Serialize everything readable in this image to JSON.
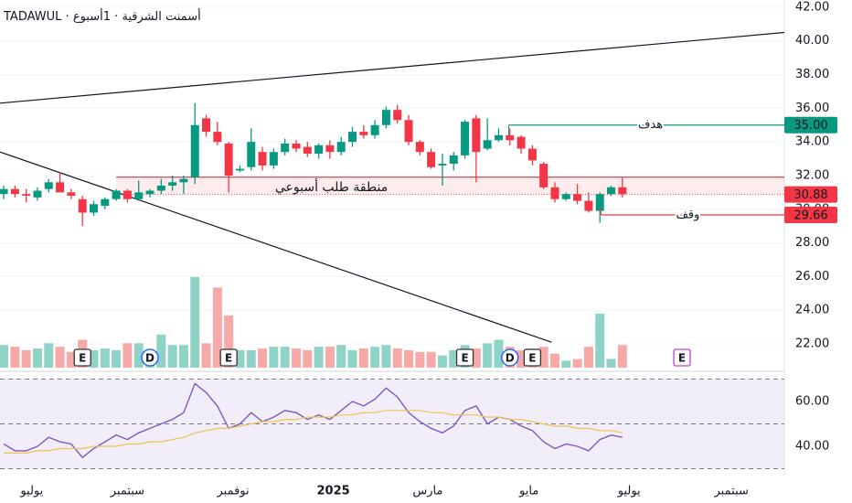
{
  "header": {
    "exchange": "TADAWUL",
    "symbol": "أسمنت الشرقية",
    "interval": "1أسبوع"
  },
  "chart_data": [
    {
      "type": "candlestick",
      "open": [
        30.9,
        31.2,
        30.9,
        30.7,
        31.2,
        31.6,
        31.0,
        30.6,
        29.8,
        30.2,
        30.6,
        31.1,
        30.6,
        30.9,
        31.1,
        31.4,
        31.6,
        31.9,
        35.4,
        34.6,
        33.9,
        32.3,
        32.5,
        33.4,
        32.6,
        33.4,
        33.9,
        33.7,
        33.3,
        33.8,
        33.4,
        34.0,
        34.6,
        34.4,
        35.0,
        35.9,
        35.3,
        34.0,
        33.4,
        32.6,
        32.7,
        33.2,
        35.4,
        33.6,
        34.1,
        34.4,
        34.3,
        33.6,
        32.7,
        31.3,
        30.6,
        30.9,
        30.5,
        29.9,
        30.9,
        31.3
      ],
      "high": [
        31.4,
        31.4,
        31.2,
        31.3,
        31.8,
        32.2,
        31.2,
        30.8,
        30.5,
        30.7,
        31.2,
        31.2,
        31.7,
        31.2,
        31.8,
        32.0,
        32.0,
        36.3,
        35.6,
        35.2,
        34.0,
        32.6,
        34.8,
        33.7,
        33.6,
        34.2,
        34.1,
        34.0,
        33.9,
        34.1,
        34.3,
        34.9,
        35.0,
        35.3,
        36.1,
        36.2,
        35.6,
        34.1,
        33.6,
        33.3,
        33.4,
        35.3,
        35.6,
        35.4,
        34.8,
        34.8,
        34.4,
        33.8,
        32.8,
        31.6,
        31.0,
        31.5,
        31.0,
        31.0,
        31.4,
        31.9
      ],
      "low": [
        30.6,
        30.7,
        30.4,
        30.5,
        31.0,
        31.0,
        30.6,
        29.0,
        29.6,
        30.0,
        30.5,
        30.4,
        30.5,
        30.7,
        30.9,
        31.1,
        30.9,
        31.5,
        34.3,
        33.8,
        31.0,
        32.2,
        32.3,
        32.3,
        32.4,
        33.2,
        33.4,
        33.1,
        33.0,
        33.0,
        33.2,
        33.7,
        34.2,
        34.2,
        34.8,
        35.1,
        33.8,
        33.2,
        32.4,
        31.4,
        32.3,
        33.0,
        31.6,
        33.5,
        34.0,
        33.8,
        33.3,
        32.6,
        31.2,
        30.4,
        30.5,
        30.3,
        29.8,
        29.2,
        30.8,
        30.7
      ],
      "close": [
        31.2,
        30.9,
        30.8,
        31.1,
        31.6,
        31.0,
        30.8,
        29.8,
        30.3,
        30.6,
        31.1,
        30.6,
        31.0,
        31.1,
        31.4,
        31.6,
        31.8,
        35.0,
        34.6,
        34.0,
        32.0,
        32.4,
        34.0,
        32.6,
        33.4,
        33.9,
        33.6,
        33.3,
        33.8,
        33.4,
        34.0,
        34.6,
        34.4,
        35.0,
        35.9,
        35.3,
        34.0,
        33.4,
        32.5,
        32.7,
        33.2,
        35.2,
        33.4,
        34.1,
        34.4,
        34.1,
        33.6,
        32.9,
        31.3,
        30.6,
        30.9,
        30.5,
        29.9,
        30.9,
        31.3,
        30.9
      ],
      "up_color": "#089981",
      "down_color": "#f23645",
      "ylim": [
        20.37,
        42.43
      ],
      "yticks": [
        {
          "value": 42,
          "label": "42.00"
        },
        {
          "value": 40,
          "label": "40.00"
        },
        {
          "value": 38,
          "label": "38.00"
        },
        {
          "value": 36,
          "label": "36.00"
        },
        {
          "value": 34,
          "label": "34.00"
        },
        {
          "value": 32,
          "label": "32.00"
        },
        {
          "value": 30,
          "label": "30.00"
        },
        {
          "value": 28,
          "label": "28.00"
        },
        {
          "value": 26,
          "label": "26.00"
        },
        {
          "value": 24,
          "label": "24.00"
        },
        {
          "value": 22,
          "label": "22.00"
        }
      ],
      "xlim": [
        -0.33,
        69.4
      ],
      "xticks": [
        {
          "value": 2.5,
          "label": "يوليو"
        },
        {
          "value": 11,
          "label": "سبتمبر"
        },
        {
          "value": 20.4,
          "label": "نوفمبر"
        },
        {
          "value": 29.3,
          "label": "2025"
        },
        {
          "value": 37.7,
          "label": "مارس"
        },
        {
          "value": 46.7,
          "label": "مايو"
        },
        {
          "value": 55.6,
          "label": "يوليو"
        },
        {
          "value": 64.7,
          "label": "سبتمبر"
        }
      ],
      "trendlines": [
        {
          "x": [
            -0.33,
            69.4
          ],
          "y": [
            36.3,
            40.5
          ]
        },
        {
          "x": [
            -0.33,
            48.7
          ],
          "y": [
            33.4,
            22.1
          ]
        }
      ],
      "zone": {
        "label": "منطقة طلب أسبوعي",
        "start": 10,
        "low": 30.88,
        "high": 31.9,
        "color": "#f23645"
      },
      "levels": [
        {
          "label": "هدف",
          "start": 44.9,
          "value": 35,
          "tag": "35.00",
          "color": "#089981"
        },
        {
          "label": "وقف",
          "start": 53.1,
          "value": 29.66,
          "tag": "29.66",
          "color": "#f23645"
        }
      ],
      "price_tags": [
        {
          "value": 30.88,
          "label": "30.88",
          "color": "#f23645"
        }
      ],
      "events": [
        {
          "label": "E",
          "x": 7,
          "color": "#333333"
        },
        {
          "label": "D",
          "x": 13,
          "color": "#2962ff"
        },
        {
          "label": "E",
          "x": 20,
          "color": "#333333"
        },
        {
          "label": "E",
          "x": 41,
          "color": "#333333"
        },
        {
          "label": "D",
          "x": 45,
          "color": "#2962ff"
        },
        {
          "label": "E",
          "x": 47,
          "color": "#333333"
        },
        {
          "label": "E",
          "x": 60.3,
          "color": "#c040d0"
        }
      ]
    },
    {
      "type": "bar",
      "values": [
        1.3,
        1.2,
        1.0,
        1.1,
        1.4,
        1.2,
        0.9,
        1.6,
        1.0,
        1.1,
        1.0,
        1.4,
        1.4,
        1.0,
        1.9,
        1.3,
        1.3,
        5.2,
        1.4,
        4.6,
        3.0,
        1.0,
        1.0,
        1.1,
        1.2,
        1.2,
        1.1,
        1.0,
        1.2,
        1.2,
        1.3,
        1.0,
        1.1,
        1.2,
        1.3,
        1.1,
        1.0,
        0.9,
        0.9,
        0.7,
        1.0,
        1.3,
        1.1,
        1.4,
        1.6,
        1.2,
        1.0,
        1.1,
        1.2,
        0.8,
        0.4,
        0.5,
        1.2,
        3.1,
        0.5,
        1.3
      ],
      "up_color": "#8fd3c7",
      "down_color": "#f7a9a8"
    },
    {
      "type": "line",
      "series": [
        {
          "color": "#7e57c2",
          "values": [
            41,
            38,
            38,
            40,
            44,
            42,
            41,
            35,
            39,
            42,
            45,
            43,
            46,
            48,
            50,
            52,
            55,
            68,
            64,
            58,
            48,
            50,
            55,
            51,
            53,
            56,
            55,
            52,
            54,
            52,
            56,
            60,
            58,
            61,
            66,
            62,
            55,
            51,
            48,
            46,
            49,
            56,
            58,
            50,
            53,
            52,
            49,
            47,
            42,
            39,
            41,
            40,
            38,
            43,
            45,
            44
          ]
        },
        {
          "color": "#f2c14e",
          "values": [
            37,
            37,
            37,
            38,
            38,
            39,
            39,
            39,
            40,
            40,
            40,
            41,
            41,
            42,
            42,
            43,
            44,
            46,
            47,
            48,
            48,
            49,
            50,
            51,
            51,
            52,
            52,
            53,
            53,
            53,
            54,
            54,
            55,
            55,
            56,
            56,
            56,
            56,
            55,
            55,
            54,
            54,
            54,
            53,
            53,
            52,
            52,
            51,
            50,
            49,
            49,
            48,
            48,
            47,
            47,
            46
          ]
        }
      ],
      "ylim": [
        26.94,
        72.65
      ],
      "yticks": [
        {
          "value": 60,
          "label": "60.00"
        },
        {
          "value": 40,
          "label": "40.00"
        }
      ],
      "bands": [
        70,
        50,
        30
      ]
    }
  ]
}
